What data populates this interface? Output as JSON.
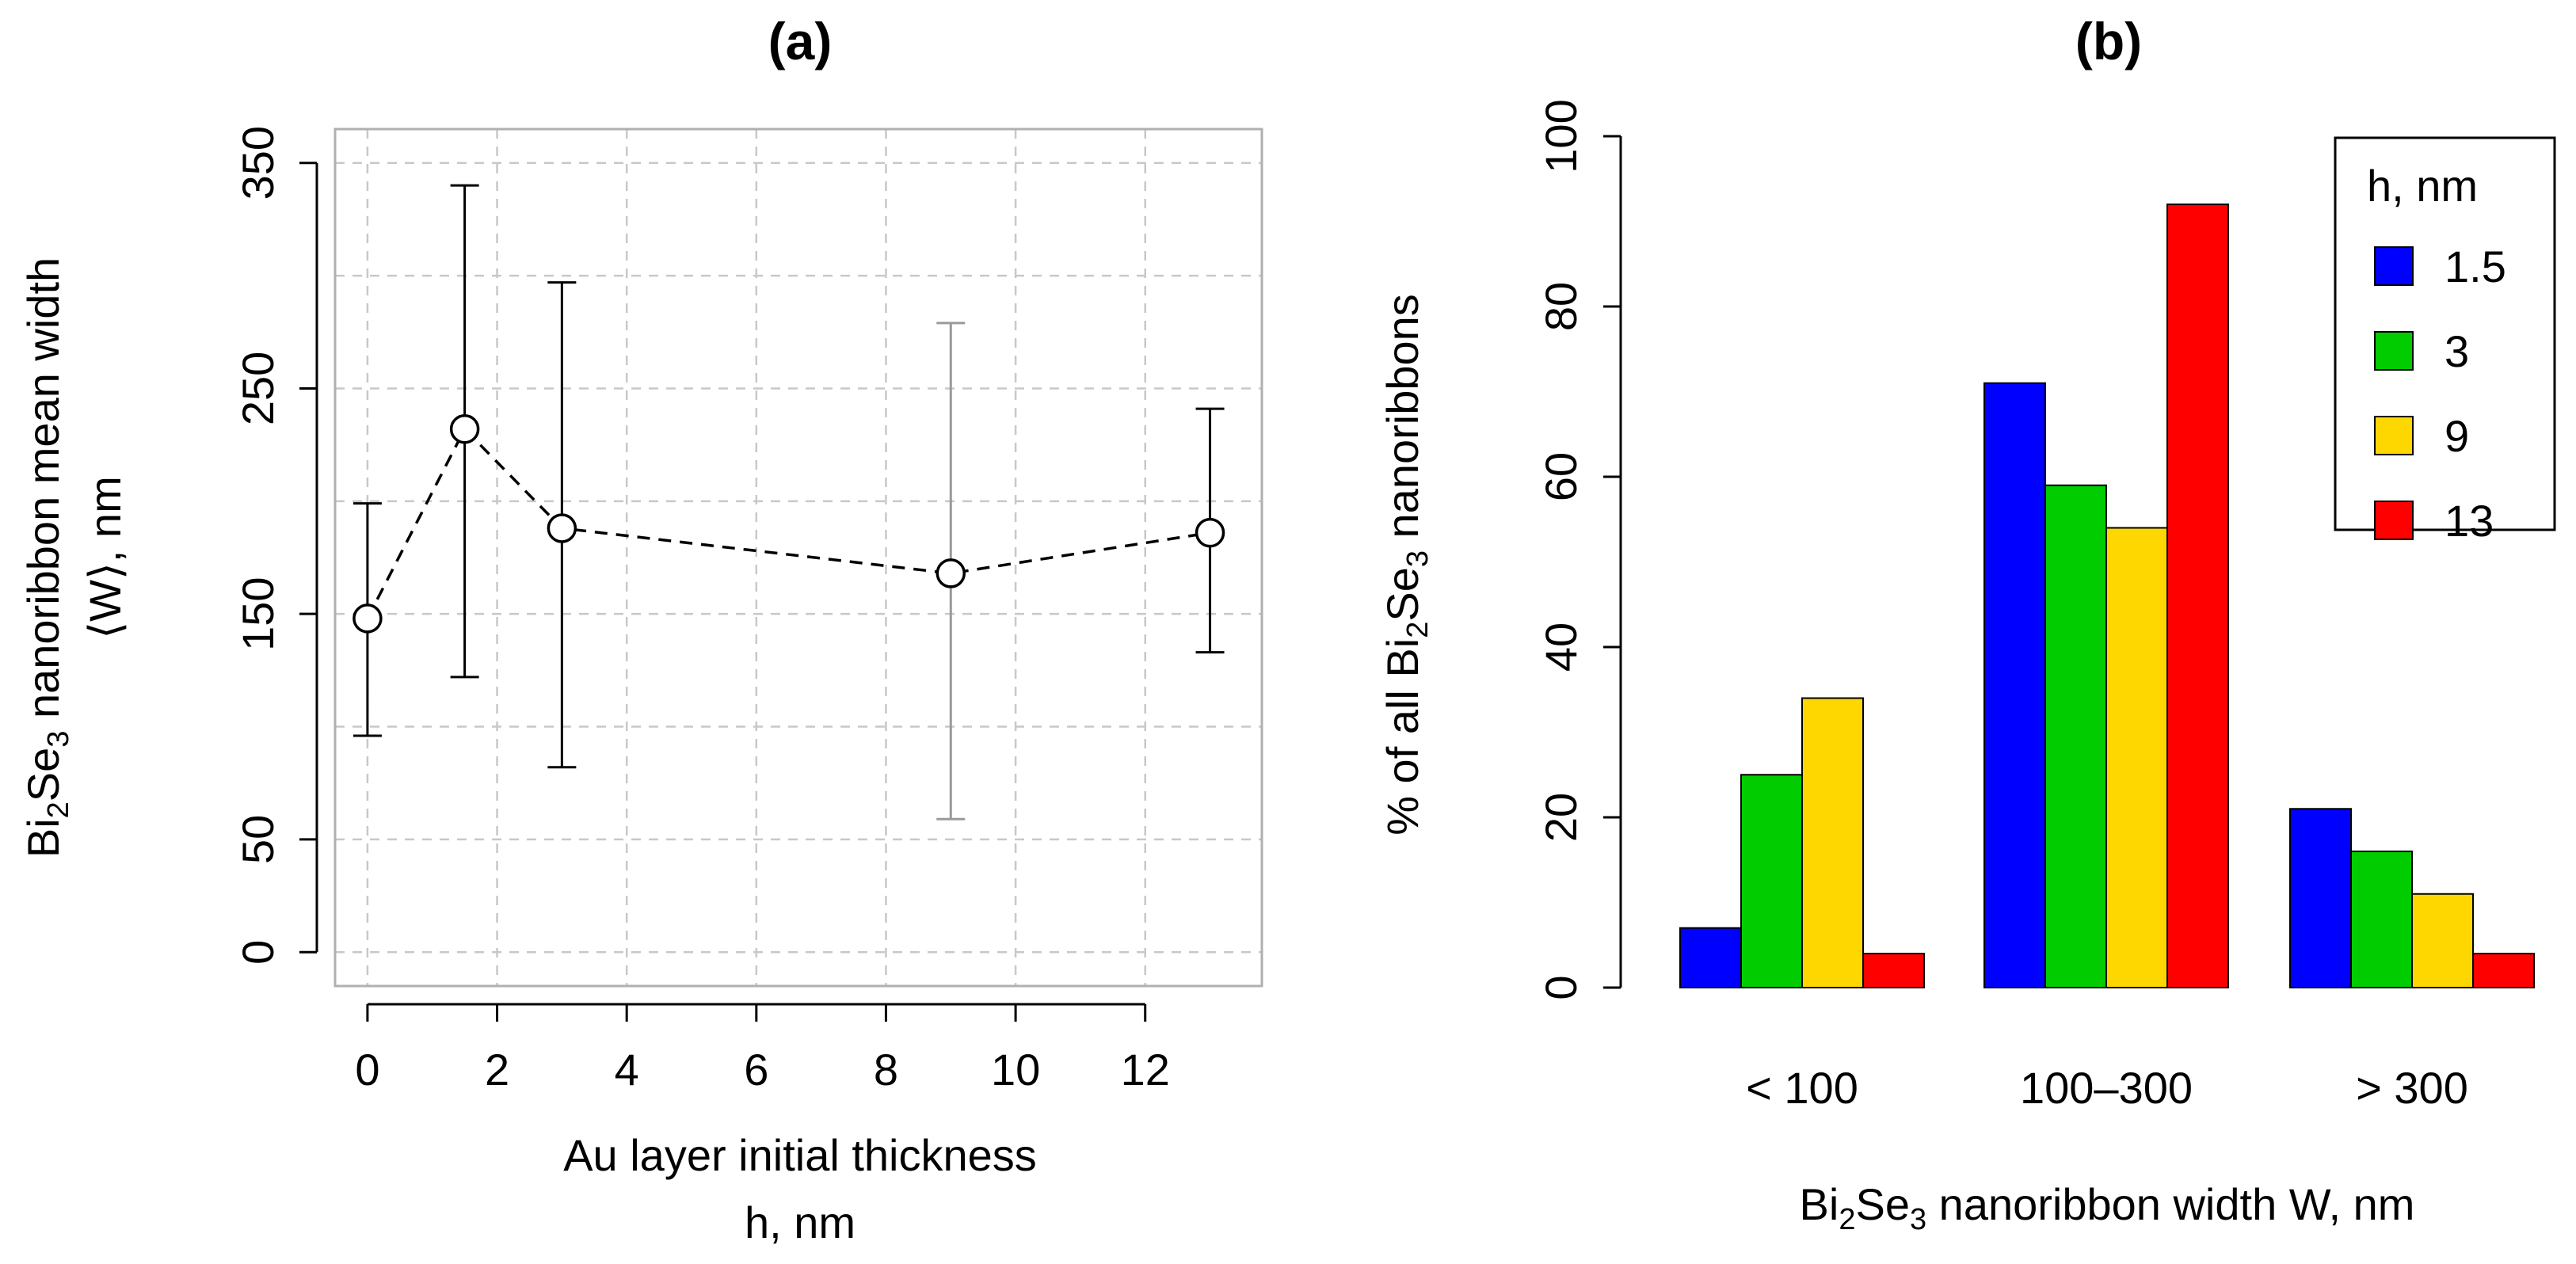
{
  "chart_data": [
    {
      "type": "line",
      "panel_label": "(a)",
      "title": "(a)",
      "xlabel_line1": "Au layer initial thickness",
      "xlabel_line2": "h, nm",
      "ylabel_line1_parts": [
        "Bi",
        "2",
        "Se",
        "3",
        " nanoribbon mean width"
      ],
      "ylabel_line2": "⟨W⟩, nm",
      "xlim": [
        -0.5,
        13.8
      ],
      "ylim": [
        -15,
        365
      ],
      "xticks": [
        0,
        2,
        4,
        6,
        8,
        10,
        12
      ],
      "xtick_labels": [
        "0",
        "2",
        "4",
        "6",
        "8",
        "10",
        "12"
      ],
      "yticks": [
        0,
        50,
        150,
        250,
        350
      ],
      "ytick_labels": [
        "0",
        "50",
        "150",
        "250",
        "350"
      ],
      "xgrid": [
        0,
        2,
        4,
        6,
        8,
        10,
        12
      ],
      "ygrid": [
        0,
        50,
        100,
        150,
        200,
        250,
        300,
        350
      ],
      "grid": true,
      "line_style": "dashed",
      "marker": "open-circle",
      "series": [
        {
          "name": "mean width",
          "x": [
            0,
            1.5,
            3,
            9,
            13
          ],
          "y": [
            148,
            232,
            188,
            168,
            186
          ],
          "err_low": [
            96,
            122,
            82,
            59,
            133
          ],
          "err_high": [
            199,
            340,
            297,
            279,
            241
          ],
          "err_colors": [
            "#000000",
            "#000000",
            "#000000",
            "#9a9a9a",
            "#000000"
          ]
        }
      ]
    },
    {
      "type": "bar",
      "panel_label": "(b)",
      "title": "(b)",
      "xlabel_parts": [
        "Bi",
        "2",
        "Se",
        "3",
        " nanoribbon width W, nm"
      ],
      "ylabel_parts": [
        "% of all Bi",
        "2",
        "Se",
        "3",
        " nanoribbons"
      ],
      "categories": [
        "< 100",
        "100–300",
        "> 300"
      ],
      "ylim": [
        0,
        100
      ],
      "yticks": [
        0,
        20,
        40,
        60,
        80,
        100
      ],
      "ytick_labels": [
        "0",
        "20",
        "40",
        "60",
        "80",
        "100"
      ],
      "legend_title": "h, nm",
      "legend_position": "top-right",
      "series": [
        {
          "name": "1.5",
          "color": "#0000ff",
          "values": [
            7,
            71,
            21
          ]
        },
        {
          "name": "3",
          "color": "#00cc00",
          "values": [
            25,
            59,
            16
          ]
        },
        {
          "name": "9",
          "color": "#ffd700",
          "values": [
            34,
            54,
            11
          ]
        },
        {
          "name": "13",
          "color": "#ff0000",
          "values": [
            4,
            92,
            4
          ]
        }
      ]
    }
  ]
}
